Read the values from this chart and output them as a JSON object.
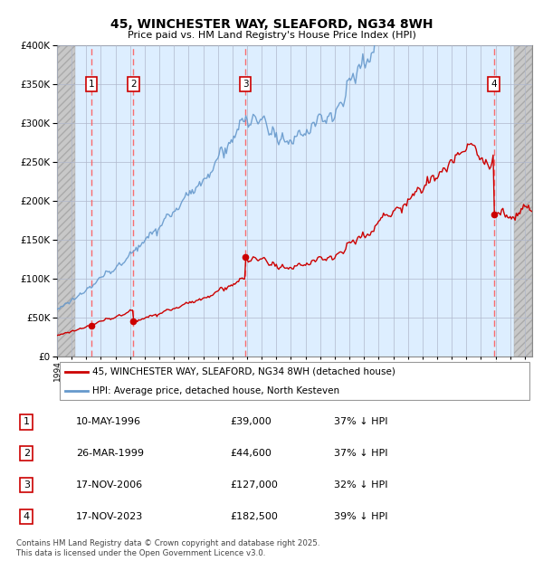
{
  "title1": "45, WINCHESTER WAY, SLEAFORD, NG34 8WH",
  "title2": "Price paid vs. HM Land Registry's House Price Index (HPI)",
  "ylim": [
    0,
    400000
  ],
  "xlim_start": 1994.0,
  "xlim_end": 2026.5,
  "sale_dates": [
    1996.36,
    1999.23,
    2006.88,
    2023.88
  ],
  "sale_prices": [
    39000,
    44600,
    127000,
    182500
  ],
  "sale_labels": [
    "1",
    "2",
    "3",
    "4"
  ],
  "legend_red_label": "45, WINCHESTER WAY, SLEAFORD, NG34 8WH (detached house)",
  "legend_blue_label": "HPI: Average price, detached house, North Kesteven",
  "table_rows": [
    [
      "1",
      "10-MAY-1996",
      "£39,000",
      "37% ↓ HPI"
    ],
    [
      "2",
      "26-MAR-1999",
      "£44,600",
      "37% ↓ HPI"
    ],
    [
      "3",
      "17-NOV-2006",
      "£127,000",
      "32% ↓ HPI"
    ],
    [
      "4",
      "17-NOV-2023",
      "£182,500",
      "39% ↓ HPI"
    ]
  ],
  "footer": "Contains HM Land Registry data © Crown copyright and database right 2025.\nThis data is licensed under the Open Government Licence v3.0.",
  "plot_bg_color": "#ddeeff",
  "grid_color": "#b0b8cc",
  "red_line_color": "#cc0000",
  "blue_line_color": "#6699cc",
  "dashed_line_color": "#ff5555",
  "hatch_color": "#cccccc",
  "hatch_left_end": 1995.25,
  "hatch_right_start": 2025.25
}
